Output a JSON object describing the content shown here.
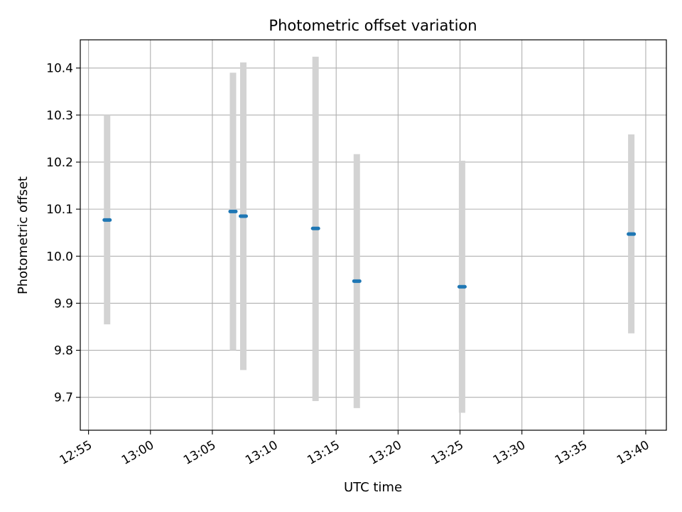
{
  "chart_data": {
    "type": "scatter",
    "title": "Photometric offset variation",
    "xlabel": "UTC time",
    "ylabel": "Photometric offset",
    "x_unit": "UTC time (HH:MM:SS)",
    "xlim": [
      "12:54:20",
      "13:41:40"
    ],
    "ylim": [
      9.63,
      10.46
    ],
    "x_ticks": [
      "12:55",
      "13:00",
      "13:05",
      "13:10",
      "13:15",
      "13:20",
      "13:25",
      "13:30",
      "13:35",
      "13:40"
    ],
    "y_ticks": [
      "9.7",
      "9.8",
      "9.9",
      "10.0",
      "10.1",
      "10.2",
      "10.3",
      "10.4"
    ],
    "grid": true,
    "series": [
      {
        "marker_color": "#1f77b4",
        "errorbar_color": "#d3d3d3",
        "points": [
          {
            "time": "12:56:30",
            "y": 10.077,
            "y_low": 9.855,
            "y_high": 10.3
          },
          {
            "time": "13:06:40",
            "y": 10.095,
            "y_low": 9.8,
            "y_high": 10.39
          },
          {
            "time": "13:07:30",
            "y": 10.085,
            "y_low": 9.758,
            "y_high": 10.412
          },
          {
            "time": "13:13:20",
            "y": 10.059,
            "y_low": 9.692,
            "y_high": 10.424
          },
          {
            "time": "13:16:40",
            "y": 9.947,
            "y_low": 9.677,
            "y_high": 10.217
          },
          {
            "time": "13:25:10",
            "y": 9.935,
            "y_low": 9.667,
            "y_high": 10.203
          },
          {
            "time": "13:38:50",
            "y": 10.047,
            "y_low": 9.836,
            "y_high": 10.259
          }
        ]
      }
    ]
  }
}
